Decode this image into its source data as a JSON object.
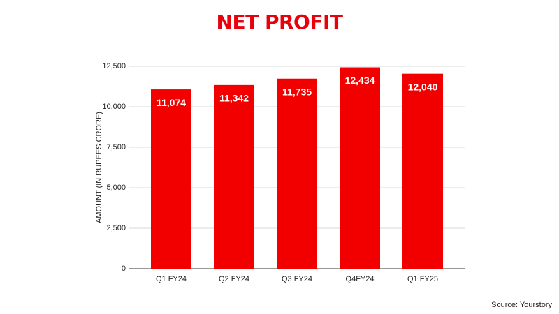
{
  "chart_data": {
    "type": "bar",
    "title": "NET PROFIT",
    "y_label": "AMOUNT (IN RUPEES CRORE)",
    "categories": [
      "Q1 FY24",
      "Q2 FY24",
      "Q3 FY24",
      "Q4FY24",
      "Q1 FY25"
    ],
    "values": [
      11074,
      11342,
      11735,
      12434,
      12040
    ],
    "value_labels": [
      "11,074",
      "11,342",
      "11,735",
      "12,434",
      "12,040"
    ],
    "color": "#f20000",
    "ylim": [
      0,
      12500
    ],
    "yticks": [
      0,
      {
        "value": 2500,
        "label": "2,500"
      },
      {
        "value": 5000,
        "label": "5,000"
      },
      {
        "value": 7500,
        "label": "7,500"
      },
      {
        "value": 10000,
        "label": "10,000"
      },
      {
        "value": 12500,
        "label": "12,500"
      }
    ],
    "grid": true,
    "source": "Source: Yourstory"
  }
}
